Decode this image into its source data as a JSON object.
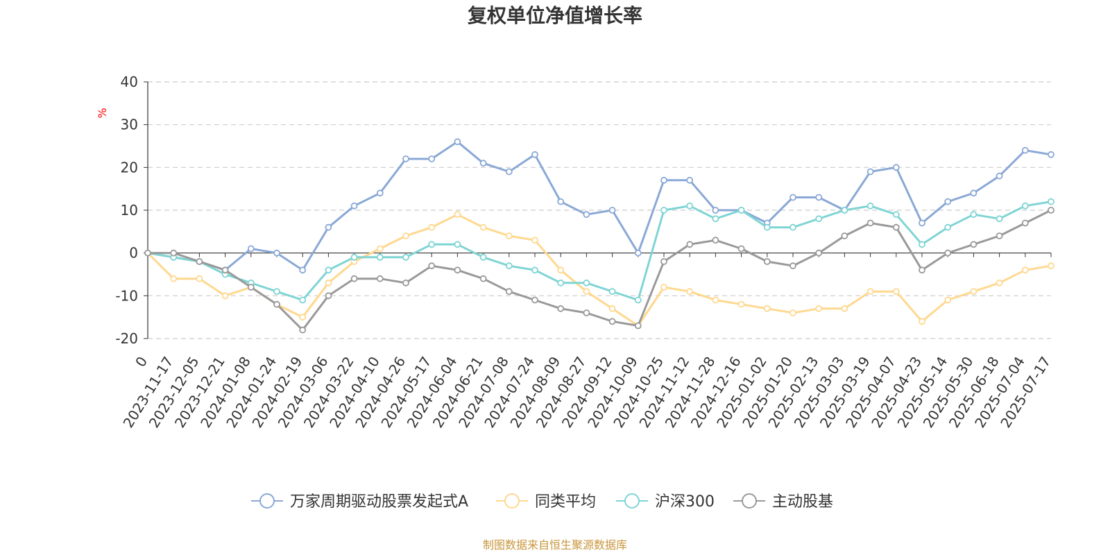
{
  "chart_data": {
    "type": "line",
    "title": "复权单位净值增长率",
    "ylabel": "%",
    "ylim": [
      -20,
      40
    ],
    "yticks": [
      -20,
      -10,
      0,
      10,
      20,
      30,
      40
    ],
    "grid": true,
    "legend_position": "bottom",
    "source": "制图数据来自恒生聚源数据库",
    "x": [
      "0",
      "2023-11-17",
      "2023-12-05",
      "2023-12-21",
      "2024-01-08",
      "2024-01-24",
      "2024-02-19",
      "2024-03-06",
      "2024-03-22",
      "2024-04-10",
      "2024-04-26",
      "2024-05-17",
      "2024-06-04",
      "2024-06-21",
      "2024-07-08",
      "2024-07-24",
      "2024-08-09",
      "2024-08-27",
      "2024-09-12",
      "2024-10-09",
      "2024-10-25",
      "2024-11-12",
      "2024-11-28",
      "2024-12-16",
      "2025-01-02",
      "2025-01-20",
      "2025-02-13",
      "2025-03-03",
      "2025-03-19",
      "2025-04-07",
      "2025-04-23",
      "2025-05-14",
      "2025-05-30",
      "2025-06-18",
      "2025-07-04",
      "2025-07-17"
    ],
    "series": [
      {
        "name": "万家周期驱动股票发起式A",
        "color": "#8aa8d6",
        "values": [
          0,
          -1,
          -2,
          -4,
          1,
          0,
          -4,
          6,
          11,
          14,
          22,
          22,
          26,
          21,
          19,
          23,
          12,
          9,
          10,
          0,
          17,
          17,
          10,
          10,
          7,
          13,
          13,
          10,
          19,
          20,
          7,
          12,
          14,
          18,
          24,
          23
        ]
      },
      {
        "name": "同类平均",
        "color": "#ffd88f",
        "values": [
          0,
          -6,
          -6,
          -10,
          -8,
          -12,
          -15,
          -7,
          -2,
          1,
          4,
          6,
          9,
          6,
          4,
          3,
          -4,
          -9,
          -13,
          -17,
          -8,
          -9,
          -11,
          -12,
          -13,
          -14,
          -13,
          -13,
          -9,
          -9,
          -16,
          -11,
          -9,
          -7,
          -4,
          -3
        ]
      },
      {
        "name": "沪深300",
        "color": "#7fd4d4",
        "values": [
          0,
          -1,
          -2,
          -5,
          -7,
          -9,
          -11,
          -4,
          -1,
          -1,
          -1,
          2,
          2,
          -1,
          -3,
          -4,
          -7,
          -7,
          -9,
          -11,
          10,
          11,
          8,
          10,
          6,
          6,
          8,
          10,
          11,
          9,
          2,
          6,
          9,
          8,
          11,
          12
        ]
      },
      {
        "name": "主动股基",
        "color": "#999999",
        "values": [
          0,
          0,
          -2,
          -4,
          -8,
          -12,
          -18,
          -10,
          -6,
          -6,
          -7,
          -3,
          -4,
          -6,
          -9,
          -11,
          -13,
          -14,
          -16,
          -17,
          -2,
          2,
          3,
          1,
          -2,
          -3,
          0,
          4,
          7,
          6,
          -4,
          0,
          2,
          4,
          7,
          10
        ]
      }
    ]
  }
}
